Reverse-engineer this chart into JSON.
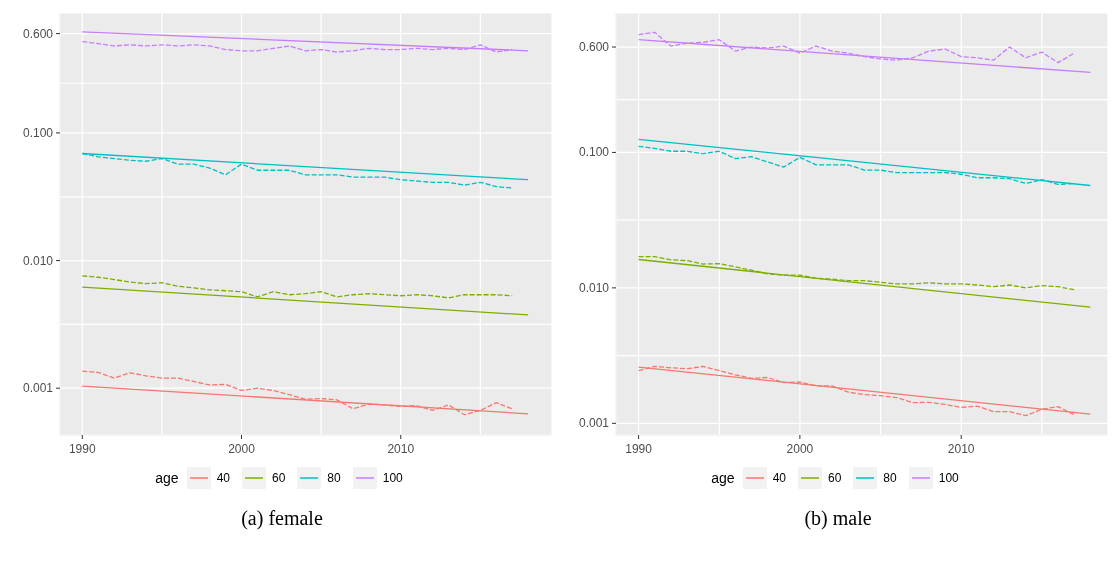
{
  "chart_data": [
    {
      "type": "line",
      "title": "(a) female",
      "legend_title": "age",
      "legend": "bottom",
      "grid": true,
      "log": "y",
      "line_style": "solid",
      "xlim": [
        1988.6,
        2019.5
      ],
      "xticks": [
        1990,
        {
          "value": 1995,
          "label": null
        },
        2000,
        {
          "value": 2005,
          "label": null
        },
        2010,
        {
          "value": 2015,
          "label": null
        }
      ],
      "ylim": [
        0.00043,
        0.87
      ],
      "yticks": [
        {
          "value": 0.001,
          "label": "0.001"
        },
        {
          "value": 0.00316,
          "label": null
        },
        {
          "value": 0.01,
          "label": "0.010"
        },
        {
          "value": 0.0316,
          "label": null
        },
        {
          "value": 0.1,
          "label": "0.100"
        },
        {
          "value": 0.245,
          "label": null
        },
        {
          "value": 0.6,
          "label": "0.600"
        }
      ],
      "series": [
        {
          "name": "40",
          "color": "#f8766d",
          "x": [
            1990,
            2018
          ],
          "values": [
            0.00104,
            0.00063
          ]
        },
        {
          "name": "60",
          "color": "#7cae00",
          "x": [
            1990,
            2018
          ],
          "values": [
            0.0062,
            0.00375
          ]
        },
        {
          "name": "80",
          "color": "#00bfc4",
          "x": [
            1990,
            2018
          ],
          "values": [
            0.069,
            0.043
          ]
        },
        {
          "name": "100",
          "color": "#c77cff",
          "x": [
            1990,
            2018
          ],
          "values": [
            0.62,
            0.44
          ]
        },
        {
          "color": "#f8766d",
          "line_style": "dashed",
          "x": [
            1990,
            1991,
            1992,
            1993,
            1994,
            1995,
            1996,
            1997,
            1998,
            1999,
            2000,
            2001,
            2002,
            2003,
            2004,
            2005,
            2006,
            2007,
            2008,
            2009,
            2010,
            2011,
            2012,
            2013,
            2014,
            2015,
            2016,
            2017
          ],
          "values": [
            0.00136,
            0.00133,
            0.0012,
            0.00132,
            0.00125,
            0.0012,
            0.0012,
            0.00113,
            0.00106,
            0.00107,
            0.00096,
            0.001,
            0.00096,
            0.00089,
            0.00082,
            0.00083,
            0.00081,
            0.00069,
            0.00075,
            0.00074,
            0.00072,
            0.00073,
            0.00067,
            0.00074,
            0.00062,
            0.00067,
            0.00077,
            0.00069
          ]
        },
        {
          "color": "#7cae00",
          "line_style": "dashed",
          "x": [
            1990,
            1991,
            1992,
            1993,
            1994,
            1995,
            1996,
            1997,
            1998,
            1999,
            2000,
            2001,
            2002,
            2003,
            2004,
            2005,
            2006,
            2007,
            2008,
            2009,
            2010,
            2011,
            2012,
            2013,
            2014,
            2015,
            2016,
            2017
          ],
          "values": [
            0.0076,
            0.0074,
            0.0071,
            0.0068,
            0.0066,
            0.0067,
            0.0063,
            0.0061,
            0.0059,
            0.0058,
            0.0057,
            0.0052,
            0.0057,
            0.0054,
            0.0055,
            0.0057,
            0.0052,
            0.0054,
            0.0055,
            0.0054,
            0.0053,
            0.0054,
            0.0053,
            0.0051,
            0.0054,
            0.0054,
            0.0054,
            0.0053
          ]
        },
        {
          "color": "#00bfc4",
          "line_style": "dashed",
          "x": [
            1990,
            1991,
            1992,
            1993,
            1994,
            1995,
            1996,
            1997,
            1998,
            1999,
            2000,
            2001,
            2002,
            2003,
            2004,
            2005,
            2006,
            2007,
            2008,
            2009,
            2010,
            2011,
            2012,
            2013,
            2014,
            2015,
            2016,
            2017
          ],
          "values": [
            0.069,
            0.065,
            0.063,
            0.061,
            0.06,
            0.063,
            0.057,
            0.057,
            0.053,
            0.047,
            0.057,
            0.051,
            0.051,
            0.051,
            0.047,
            0.047,
            0.047,
            0.045,
            0.045,
            0.045,
            0.043,
            0.042,
            0.041,
            0.041,
            0.039,
            0.041,
            0.038,
            0.037
          ]
        },
        {
          "color": "#c77cff",
          "line_style": "dashed",
          "x": [
            1990,
            1991,
            1992,
            1993,
            1994,
            1995,
            1996,
            1997,
            1998,
            1999,
            2000,
            2001,
            2002,
            2003,
            2004,
            2005,
            2006,
            2007,
            2008,
            2009,
            2010,
            2011,
            2012,
            2013,
            2014,
            2015,
            2016,
            2017
          ],
          "values": [
            0.52,
            0.5,
            0.48,
            0.49,
            0.48,
            0.49,
            0.48,
            0.49,
            0.48,
            0.45,
            0.44,
            0.44,
            0.46,
            0.48,
            0.44,
            0.45,
            0.43,
            0.44,
            0.46,
            0.45,
            0.45,
            0.46,
            0.45,
            0.46,
            0.45,
            0.49,
            0.43,
            0.45
          ]
        }
      ]
    },
    {
      "type": "line",
      "title": "(b) male",
      "legend_title": "age",
      "legend": "bottom",
      "grid": true,
      "log": "y",
      "line_style": "solid",
      "xlim": [
        1988.6,
        2019.1
      ],
      "xticks": [
        1990,
        {
          "value": 1995,
          "label": null
        },
        2000,
        {
          "value": 2005,
          "label": null
        },
        2010,
        {
          "value": 2015,
          "label": null
        }
      ],
      "ylim": [
        0.00082,
        1.07
      ],
      "yticks": [
        {
          "value": 0.001,
          "label": "0.001"
        },
        {
          "value": 0.00316,
          "label": null
        },
        {
          "value": 0.01,
          "label": "0.010"
        },
        {
          "value": 0.0316,
          "label": null
        },
        {
          "value": 0.1,
          "label": "0.100"
        },
        {
          "value": 0.245,
          "label": null
        },
        {
          "value": 0.6,
          "label": "0.600"
        }
      ],
      "series": [
        {
          "name": "40",
          "color": "#f8766d",
          "x": [
            1990,
            2018
          ],
          "values": [
            0.0026,
            0.00117
          ]
        },
        {
          "name": "60",
          "color": "#7cae00",
          "x": [
            1990,
            2018
          ],
          "values": [
            0.0162,
            0.0072
          ]
        },
        {
          "name": "80",
          "color": "#00bfc4",
          "x": [
            1990,
            2018
          ],
          "values": [
            0.125,
            0.057
          ]
        },
        {
          "name": "100",
          "color": "#c77cff",
          "x": [
            1990,
            2018
          ],
          "values": [
            0.68,
            0.39
          ]
        },
        {
          "color": "#f8766d",
          "line_style": "dashed",
          "x": [
            1990,
            1991,
            1992,
            1993,
            1994,
            1995,
            1996,
            1997,
            1998,
            1999,
            2000,
            2001,
            2002,
            2003,
            2004,
            2005,
            2006,
            2007,
            2008,
            2009,
            2010,
            2011,
            2012,
            2013,
            2014,
            2015,
            2016,
            2017
          ],
          "values": [
            0.00245,
            0.00263,
            0.00257,
            0.00253,
            0.00263,
            0.00245,
            0.00228,
            0.00215,
            0.00218,
            0.002,
            0.00202,
            0.00189,
            0.00189,
            0.0017,
            0.00163,
            0.0016,
            0.00155,
            0.00142,
            0.00143,
            0.00138,
            0.00131,
            0.00134,
            0.00122,
            0.00122,
            0.00114,
            0.00127,
            0.00133,
            0.00116
          ]
        },
        {
          "color": "#7cae00",
          "line_style": "dashed",
          "x": [
            1990,
            1991,
            1992,
            1993,
            1994,
            1995,
            1996,
            1997,
            1998,
            1999,
            2000,
            2001,
            2002,
            2003,
            2004,
            2005,
            2006,
            2007,
            2008,
            2009,
            2010,
            2011,
            2012,
            2013,
            2014,
            2015,
            2016,
            2017
          ],
          "values": [
            0.017,
            0.017,
            0.0161,
            0.0159,
            0.015,
            0.0151,
            0.0143,
            0.0135,
            0.0127,
            0.0124,
            0.0124,
            0.0118,
            0.0116,
            0.0113,
            0.0113,
            0.011,
            0.0107,
            0.0107,
            0.0109,
            0.0107,
            0.0107,
            0.0105,
            0.0102,
            0.0105,
            0.01,
            0.0104,
            0.0102,
            0.0097
          ]
        },
        {
          "color": "#00bfc4",
          "line_style": "dashed",
          "x": [
            1990,
            1991,
            1992,
            1993,
            1994,
            1995,
            1996,
            1997,
            1998,
            1999,
            2000,
            2001,
            2002,
            2003,
            2004,
            2005,
            2006,
            2007,
            2008,
            2009,
            2010,
            2011,
            2012,
            2013,
            2014,
            2015,
            2016,
            2017
          ],
          "values": [
            0.111,
            0.107,
            0.102,
            0.102,
            0.098,
            0.102,
            0.09,
            0.093,
            0.085,
            0.078,
            0.092,
            0.081,
            0.081,
            0.081,
            0.074,
            0.074,
            0.071,
            0.071,
            0.071,
            0.071,
            0.069,
            0.065,
            0.065,
            0.064,
            0.059,
            0.063,
            0.058,
            0.059
          ]
        },
        {
          "color": "#c77cff",
          "line_style": "dashed",
          "x": [
            1990,
            1991,
            1992,
            1993,
            1994,
            1995,
            1996,
            1997,
            1998,
            1999,
            2000,
            2001,
            2002,
            2003,
            2004,
            2005,
            2006,
            2007,
            2008,
            2009,
            2010,
            2011,
            2012,
            2013,
            2014,
            2015,
            2016,
            2017
          ],
          "values": [
            0.74,
            0.77,
            0.61,
            0.64,
            0.65,
            0.68,
            0.56,
            0.6,
            0.59,
            0.61,
            0.54,
            0.61,
            0.56,
            0.54,
            0.51,
            0.49,
            0.48,
            0.5,
            0.56,
            0.58,
            0.51,
            0.5,
            0.48,
            0.6,
            0.5,
            0.55,
            0.46,
            0.54
          ]
        }
      ]
    }
  ]
}
